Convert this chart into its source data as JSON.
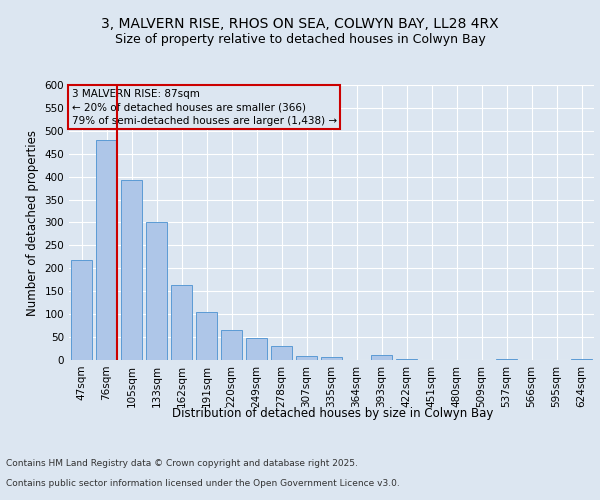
{
  "title_line1": "3, MALVERN RISE, RHOS ON SEA, COLWYN BAY, LL28 4RX",
  "title_line2": "Size of property relative to detached houses in Colwyn Bay",
  "xlabel": "Distribution of detached houses by size in Colwyn Bay",
  "ylabel": "Number of detached properties",
  "categories": [
    "47sqm",
    "76sqm",
    "105sqm",
    "133sqm",
    "162sqm",
    "191sqm",
    "220sqm",
    "249sqm",
    "278sqm",
    "307sqm",
    "335sqm",
    "364sqm",
    "393sqm",
    "422sqm",
    "451sqm",
    "480sqm",
    "509sqm",
    "537sqm",
    "566sqm",
    "595sqm",
    "624sqm"
  ],
  "values": [
    218,
    480,
    393,
    302,
    163,
    105,
    65,
    47,
    30,
    9,
    6,
    0,
    10,
    3,
    0,
    0,
    0,
    3,
    0,
    0,
    3
  ],
  "bar_color": "#aec6e8",
  "bar_edge_color": "#5b9bd5",
  "annotation_label": "3 MALVERN RISE: 87sqm",
  "annotation_line1": "← 20% of detached houses are smaller (366)",
  "annotation_line2": "79% of semi-detached houses are larger (1,438) →",
  "vline_color": "#cc0000",
  "annotation_box_edge_color": "#cc0000",
  "ylim": [
    0,
    600
  ],
  "yticks": [
    0,
    50,
    100,
    150,
    200,
    250,
    300,
    350,
    400,
    450,
    500,
    550,
    600
  ],
  "footer_line1": "Contains HM Land Registry data © Crown copyright and database right 2025.",
  "footer_line2": "Contains public sector information licensed under the Open Government Licence v3.0.",
  "background_color": "#dce6f1",
  "plot_bg_color": "#dce6f1",
  "grid_color": "#ffffff",
  "title_fontsize": 10,
  "subtitle_fontsize": 9,
  "axis_label_fontsize": 8.5,
  "tick_fontsize": 7.5,
  "annotation_fontsize": 7.5,
  "footer_fontsize": 6.5
}
